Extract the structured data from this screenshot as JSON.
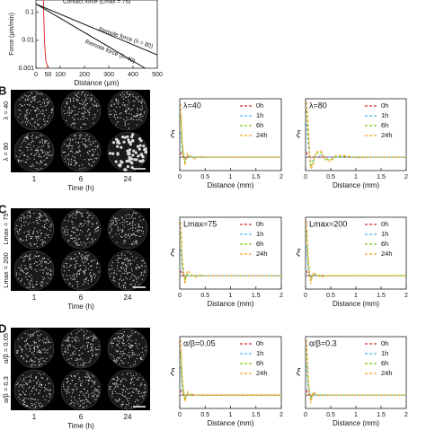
{
  "chart_data": [
    {
      "type": "line",
      "log_y": true,
      "x_label": "Distance (µm)",
      "y_label": "Force (µm/min)",
      "xlim": [
        0,
        500
      ],
      "xticks": [
        0,
        50,
        100,
        200,
        300,
        400,
        500
      ],
      "ylim": [
        0.001,
        0.5
      ],
      "yticks": [
        0.001,
        0.01,
        0.1
      ],
      "series": [
        {
          "name": "Contact force (Lmax = 75)",
          "color": "#e03030",
          "x": [
            30,
            32,
            35,
            40,
            50
          ],
          "values": [
            0.5,
            0.1,
            0.01,
            0.002,
            0.001
          ]
        },
        {
          "name": "Remote force (λ = 80)",
          "color": "#111111",
          "x": [
            0,
            500
          ],
          "values": [
            0.2,
            0.003
          ]
        },
        {
          "name": "Remote force (λ=40)",
          "color": "#111111",
          "x": [
            0,
            450
          ],
          "values": [
            0.2,
            0.001
          ]
        }
      ]
    },
    {
      "type": "line",
      "title": "λ=40",
      "x_label": "Distance (mm)",
      "y_label": "ξ",
      "xlim": [
        0,
        2
      ],
      "xticks": [
        0,
        0.5,
        1,
        1.5,
        2
      ],
      "ylim": [
        -0.8,
        3.5
      ],
      "x": [
        0.02,
        0.05,
        0.1,
        0.15,
        0.2,
        0.3,
        0.4,
        0.5,
        0.6,
        0.8,
        1,
        1.2,
        1.5,
        2
      ],
      "series": [
        {
          "name": "0h",
          "color": "#d62728",
          "values": [
            0.3,
            0.05,
            0,
            0,
            0,
            0,
            0,
            0,
            0,
            0,
            0,
            0,
            0,
            0
          ]
        },
        {
          "name": "1h",
          "color": "#4fb8f0",
          "values": [
            1.5,
            0.3,
            -0.1,
            0,
            0,
            0,
            0,
            0,
            0,
            0,
            0,
            0,
            0,
            0
          ]
        },
        {
          "name": "6h",
          "color": "#7cc400",
          "values": [
            2.5,
            0.6,
            -0.3,
            0.1,
            0,
            0,
            0,
            0,
            0,
            0,
            0,
            0,
            0,
            0
          ]
        },
        {
          "name": "24h",
          "color": "#f5a623",
          "values": [
            3.2,
            1.0,
            -0.5,
            0.2,
            0.1,
            -0.1,
            0.05,
            0,
            0,
            0,
            0,
            0,
            0,
            0
          ]
        }
      ]
    },
    {
      "type": "line",
      "title": "λ=80",
      "x_label": "Distance (mm)",
      "y_label": "ξ",
      "xlim": [
        0,
        2
      ],
      "xticks": [
        0,
        0.5,
        1,
        1.5,
        2
      ],
      "ylim": [
        -0.8,
        3.5
      ],
      "x": [
        0.02,
        0.05,
        0.1,
        0.15,
        0.2,
        0.3,
        0.4,
        0.5,
        0.6,
        0.8,
        1,
        1.2,
        1.5,
        2
      ],
      "series": [
        {
          "name": "0h",
          "color": "#d62728",
          "values": [
            0.3,
            0.05,
            0,
            0,
            0,
            0,
            0,
            0,
            0,
            0,
            0,
            0,
            0,
            0
          ]
        },
        {
          "name": "1h",
          "color": "#4fb8f0",
          "values": [
            2,
            0.8,
            -0.3,
            -0.2,
            0,
            0.1,
            0,
            0,
            0,
            0,
            0,
            0,
            0,
            0
          ]
        },
        {
          "name": "6h",
          "color": "#7cc400",
          "values": [
            2.8,
            1.5,
            -0.6,
            -0.3,
            0.2,
            0.3,
            -0.1,
            -0.15,
            0,
            0.05,
            0,
            0,
            0,
            0
          ]
        },
        {
          "name": "24h",
          "color": "#f5a623",
          "values": [
            3.3,
            2,
            -0.7,
            -0.5,
            0.3,
            0.4,
            -0.2,
            -0.25,
            0.1,
            0.1,
            -0.05,
            0,
            0,
            0
          ]
        }
      ]
    },
    {
      "type": "line",
      "title": "Lmax=75",
      "x_label": "Distance (mm)",
      "y_label": "ξ",
      "xlim": [
        0,
        2
      ],
      "xticks": [
        0,
        0.5,
        1,
        1.5,
        2
      ],
      "ylim": [
        -0.8,
        3.5
      ],
      "x": [
        0.02,
        0.05,
        0.1,
        0.15,
        0.2,
        0.3,
        0.4,
        0.5,
        0.6,
        0.8,
        1,
        1.2,
        1.5,
        2
      ],
      "series": [
        {
          "name": "0h",
          "color": "#d62728",
          "values": [
            0.3,
            0.05,
            0,
            0,
            0,
            0,
            0,
            0,
            0,
            0,
            0,
            0,
            0,
            0
          ]
        },
        {
          "name": "1h",
          "color": "#4fb8f0",
          "values": [
            1.6,
            0.3,
            -0.1,
            0,
            0,
            0,
            0,
            0,
            0,
            0,
            0,
            0,
            0,
            0
          ]
        },
        {
          "name": "6h",
          "color": "#7cc400",
          "values": [
            2.6,
            0.7,
            -0.3,
            0.1,
            0,
            0,
            0,
            0,
            0,
            0,
            0,
            0,
            0,
            0
          ]
        },
        {
          "name": "24h",
          "color": "#f5a623",
          "values": [
            3.2,
            1.1,
            -0.5,
            0.3,
            0.15,
            -0.1,
            0.05,
            0,
            0,
            0,
            0,
            0,
            0,
            0
          ]
        }
      ]
    },
    {
      "type": "line",
      "title": "Lmax=200",
      "x_label": "Distance (mm)",
      "y_label": "ξ",
      "xlim": [
        0,
        2
      ],
      "xticks": [
        0,
        0.5,
        1,
        1.5,
        2
      ],
      "ylim": [
        -0.8,
        3.5
      ],
      "x": [
        0.02,
        0.05,
        0.1,
        0.15,
        0.2,
        0.3,
        0.4,
        0.5,
        0.6,
        0.8,
        1,
        1.2,
        1.5,
        2
      ],
      "series": [
        {
          "name": "0h",
          "color": "#d62728",
          "values": [
            0.3,
            0.05,
            0,
            0,
            0,
            0,
            0,
            0,
            0,
            0,
            0,
            0,
            0,
            0
          ]
        },
        {
          "name": "1h",
          "color": "#4fb8f0",
          "values": [
            1.8,
            0.4,
            -0.1,
            0,
            0,
            0,
            0,
            0,
            0,
            0,
            0,
            0,
            0,
            0
          ]
        },
        {
          "name": "6h",
          "color": "#7cc400",
          "values": [
            2.7,
            0.8,
            -0.3,
            0.1,
            0.05,
            0,
            0,
            0,
            0,
            0,
            0,
            0,
            0,
            0
          ]
        },
        {
          "name": "24h",
          "color": "#f5a623",
          "values": [
            3.3,
            1.2,
            -0.5,
            0.2,
            0.1,
            -0.1,
            0,
            0,
            0,
            0,
            0,
            0,
            0,
            0
          ]
        }
      ]
    },
    {
      "type": "line",
      "title": "α/β=0.05",
      "x_label": "Distance (mm)",
      "y_label": "ξ",
      "xlim": [
        0,
        2
      ],
      "xticks": [
        0,
        0.5,
        1,
        1.5,
        2
      ],
      "ylim": [
        -0.8,
        3.5
      ],
      "x": [
        0.02,
        0.05,
        0.1,
        0.15,
        0.2,
        0.3,
        0.4,
        0.5,
        0.6,
        0.8,
        1,
        1.2,
        1.5,
        2
      ],
      "series": [
        {
          "name": "0h",
          "color": "#d62728",
          "values": [
            0.3,
            0.05,
            0,
            0,
            0,
            0,
            0,
            0,
            0,
            0,
            0,
            0,
            0,
            0
          ]
        },
        {
          "name": "1h",
          "color": "#4fb8f0",
          "values": [
            1.7,
            0.3,
            -0.1,
            0,
            0,
            0,
            0,
            0,
            0,
            0,
            0,
            0,
            0,
            0
          ]
        },
        {
          "name": "6h",
          "color": "#7cc400",
          "values": [
            2.6,
            0.7,
            -0.3,
            0.1,
            0,
            0,
            0,
            0,
            0,
            0,
            0,
            0,
            0,
            0
          ]
        },
        {
          "name": "24h",
          "color": "#f5a623",
          "values": [
            3.3,
            1.0,
            -0.4,
            0.2,
            0.1,
            0,
            0,
            0,
            0,
            0,
            0,
            0,
            0,
            0
          ]
        }
      ]
    },
    {
      "type": "line",
      "title": "α/β=0.3",
      "x_label": "Distance (mm)",
      "y_label": "ξ",
      "xlim": [
        0,
        2
      ],
      "xticks": [
        0,
        0.5,
        1,
        1.5,
        2
      ],
      "ylim": [
        -0.8,
        3.5
      ],
      "x": [
        0.02,
        0.05,
        0.1,
        0.15,
        0.2,
        0.3,
        0.4,
        0.5,
        0.6,
        0.8,
        1,
        1.2,
        1.5,
        2
      ],
      "series": [
        {
          "name": "0h",
          "color": "#d62728",
          "values": [
            0.3,
            0.05,
            0,
            0,
            0,
            0,
            0,
            0,
            0,
            0,
            0,
            0,
            0,
            0
          ]
        },
        {
          "name": "1h",
          "color": "#4fb8f0",
          "values": [
            1.8,
            0.4,
            -0.1,
            0,
            0,
            0,
            0,
            0,
            0,
            0,
            0,
            0,
            0,
            0
          ]
        },
        {
          "name": "6h",
          "color": "#7cc400",
          "values": [
            2.8,
            0.8,
            -0.3,
            0.1,
            0,
            0,
            0,
            0,
            0,
            0,
            0,
            0,
            0,
            0
          ]
        },
        {
          "name": "24h",
          "color": "#f5a623",
          "values": [
            3.3,
            1.2,
            -0.5,
            0.2,
            0.1,
            -0.05,
            0,
            0,
            0,
            0,
            0,
            0,
            0,
            0
          ]
        }
      ]
    }
  ],
  "panels": [
    {
      "letter": "B",
      "rows": [
        "λ = 40",
        "λ = 80"
      ],
      "columns": [
        "1",
        "6",
        "24"
      ],
      "x_label": "Time (h)"
    },
    {
      "letter": "C",
      "rows": [
        "Lmax = 75",
        "Lmax = 200"
      ],
      "columns": [
        "1",
        "6",
        "24"
      ],
      "x_label": "Time (h)"
    },
    {
      "letter": "D",
      "rows": [
        "α/β = 0.05",
        "α/β = 0.3"
      ],
      "columns": [
        "1",
        "6",
        "24"
      ],
      "x_label": "Time (h)"
    }
  ]
}
